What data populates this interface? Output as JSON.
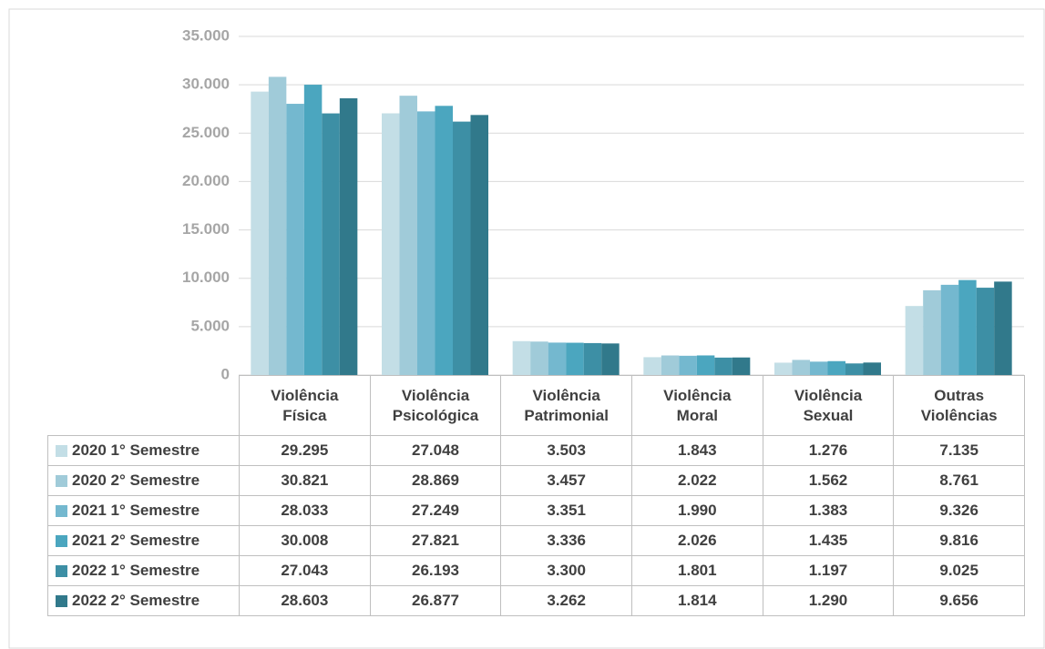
{
  "chart_data": {
    "type": "bar",
    "categories": [
      "Violência Física",
      "Violência Psicológica",
      "Violência Patrimonial",
      "Violência Moral",
      "Violência Sexual",
      "Outras Violências"
    ],
    "series": [
      {
        "name": "2020 1° Semestre",
        "color": "#c3dee6",
        "values": [
          29295,
          27048,
          3503,
          1843,
          1276,
          7135
        ],
        "value_labels": [
          "29.295",
          "27.048",
          "3.503",
          "1.843",
          "1.276",
          "7.135"
        ]
      },
      {
        "name": "2020 2° Semestre",
        "color": "#a0cbd9",
        "values": [
          30821,
          28869,
          3457,
          2022,
          1562,
          8761
        ],
        "value_labels": [
          "30.821",
          "28.869",
          "3.457",
          "2.022",
          "1.562",
          "8.761"
        ]
      },
      {
        "name": "2021 1° Semestre",
        "color": "#74b8cf",
        "values": [
          28033,
          27249,
          3351,
          1990,
          1383,
          9326
        ],
        "value_labels": [
          "28.033",
          "27.249",
          "3.351",
          "1.990",
          "1.383",
          "9.326"
        ]
      },
      {
        "name": "2021 2° Semestre",
        "color": "#4ba6bf",
        "values": [
          30008,
          27821,
          3336,
          2026,
          1435,
          9816
        ],
        "value_labels": [
          "30.008",
          "27.821",
          "3.336",
          "2.026",
          "1.435",
          "9.816"
        ]
      },
      {
        "name": "2022 1° Semestre",
        "color": "#3d8fa5",
        "values": [
          27043,
          26193,
          3300,
          1801,
          1197,
          9025
        ],
        "value_labels": [
          "27.043",
          "26.193",
          "3.300",
          "1.801",
          "1.197",
          "9.025"
        ]
      },
      {
        "name": "2022 2° Semestre",
        "color": "#31798b",
        "values": [
          28603,
          26877,
          3262,
          1814,
          1290,
          9656
        ],
        "value_labels": [
          "28.603",
          "26.877",
          "3.262",
          "1.814",
          "1.290",
          "9.656"
        ]
      }
    ],
    "ylim": [
      0,
      35000
    ],
    "yticks": [
      0,
      {
        "value": 5000,
        "label": "5.000"
      },
      {
        "value": 10000,
        "label": "10.000"
      },
      {
        "value": 15000,
        "label": "15.000"
      },
      {
        "value": 20000,
        "label": "20.000"
      },
      {
        "value": 25000,
        "label": "25.000"
      },
      {
        "value": 30000,
        "label": "30.000"
      },
      {
        "value": 35000,
        "label": "35.000"
      }
    ],
    "grid": true
  }
}
